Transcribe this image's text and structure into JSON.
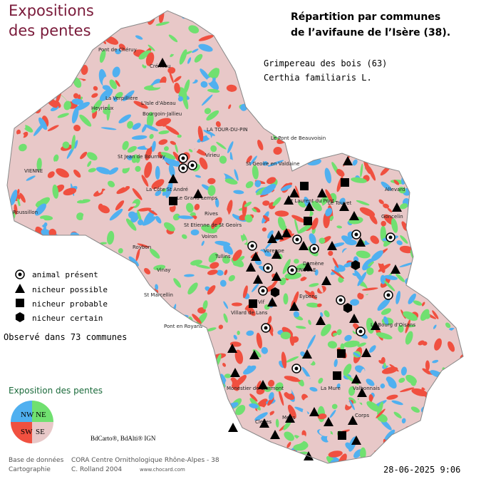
{
  "header": {
    "title_lines": [
      "Expositions",
      "des pentes"
    ],
    "subtitle_lines": [
      "Répartition par communes",
      "de l’avifaune de l’Isère (38)."
    ]
  },
  "species": {
    "common": "Grimpereau des bois  (63)",
    "latin": "Certhia familiaris L."
  },
  "legend": {
    "items": [
      "animal présent",
      "nicheur possible",
      "nicheur probable",
      "nicheur certain"
    ]
  },
  "observed": "Observé dans 73 communes",
  "slope_legend": {
    "title": "Exposition des pentes",
    "sectors": [
      "NW",
      "NE",
      "SW",
      "SE"
    ]
  },
  "sources": "BdCarto®, BdAlti® IGN",
  "footer": {
    "rows": [
      [
        "Base de données",
        "CORA Centre Ornithologique Rhône-Alpes - 38"
      ],
      [
        "Cartographie",
        "C. Rolland 2004",
        "www.chocard.com"
      ]
    ],
    "date": "28-06-2025 9:06"
  },
  "towns": [
    "Pont de Chéruy",
    "Crémieu",
    "La Verpillière",
    "L'Isle d'Abeau",
    "Heyrieux",
    "Bourgoin-Jallieu",
    "LA TOUR-DU-PIN",
    "Le Pont de Beauvoisin",
    "VIENNE",
    "St Jean de Bournay",
    "Virieu",
    "St Geoire en Valdaine",
    "La Côte St André",
    "Le Grand Lemps",
    "Roussillon",
    "St Etienne de St Geoirs",
    "Rives",
    "Voiron",
    "St Laurent du Pont",
    "Le Touvet",
    "Allevard",
    "Goncelin",
    "Tullins",
    "Roybon",
    "Vinay",
    "Voreppe",
    "GRENOBLE",
    "Domène",
    "St Marcellin",
    "Vif",
    "Eybens",
    "Villard de Lans",
    "Le Bourg d'Oisans",
    "Pont en Royans",
    "Monestier de Clermont",
    "La Mure",
    "Valbonnais",
    "Mens",
    "Corps",
    "Clelles"
  ]
}
